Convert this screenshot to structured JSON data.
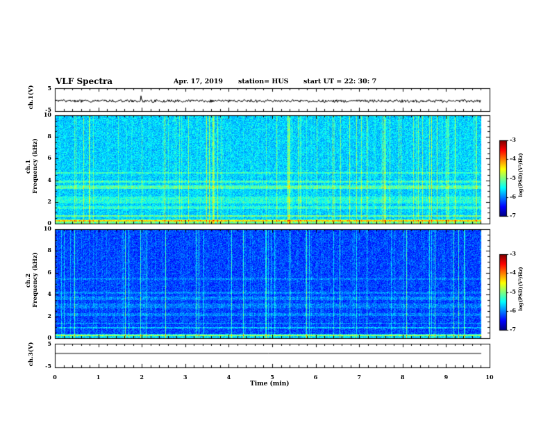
{
  "header": {
    "title": "VLF Spectra",
    "date": "Apr. 17, 2019",
    "station": "station= HUS",
    "start": "start  UT  =   22: 30: 7"
  },
  "chart_data": [
    {
      "type": "line",
      "panel": "ch1-waveform",
      "ylabel": "ch.1(V)",
      "ylim": [
        -5,
        5
      ],
      "yticks": [
        "5",
        "-5"
      ],
      "xlim": [
        0,
        10
      ],
      "note": "noisy black trace near 0 V"
    },
    {
      "type": "heatmap",
      "panel": "ch1-spectrogram",
      "ylabel": [
        "ch.1",
        "Frequency  (kHz)"
      ],
      "ylim": [
        0,
        10
      ],
      "yticks": [
        "0",
        "2",
        "4",
        "6",
        "8",
        "10"
      ],
      "xlim": [
        0,
        10
      ],
      "colorbar": {
        "label": "log(PSD)(V²/Hz)",
        "range": [
          -7,
          -3
        ],
        "ticks": [
          "-3",
          "-4",
          "-5",
          "-6",
          "-7"
        ]
      }
    },
    {
      "type": "heatmap",
      "panel": "ch2-spectrogram",
      "ylabel": [
        "ch.2",
        "Frequency  (kHz)"
      ],
      "ylim": [
        0,
        10
      ],
      "yticks": [
        "0",
        "2",
        "4",
        "6",
        "8",
        "10"
      ],
      "xlim": [
        0,
        10
      ],
      "colorbar": {
        "label": "log(PSD)(V²/Hz)",
        "range": [
          -7,
          -3
        ],
        "ticks": [
          "-3",
          "-4",
          "-5",
          "-6",
          "-7"
        ]
      }
    },
    {
      "type": "line",
      "panel": "ch3-waveform",
      "ylabel": "ch.3(V)",
      "ylim": [
        -5,
        5
      ],
      "yticks": [
        "5",
        "-5"
      ],
      "xlim": [
        0,
        10
      ],
      "note": "flat line near 0 V"
    }
  ],
  "xaxis": {
    "label": "Time  (min)",
    "ticks": [
      "0",
      "1",
      "2",
      "3",
      "4",
      "5",
      "6",
      "7",
      "8",
      "9",
      "10"
    ]
  }
}
